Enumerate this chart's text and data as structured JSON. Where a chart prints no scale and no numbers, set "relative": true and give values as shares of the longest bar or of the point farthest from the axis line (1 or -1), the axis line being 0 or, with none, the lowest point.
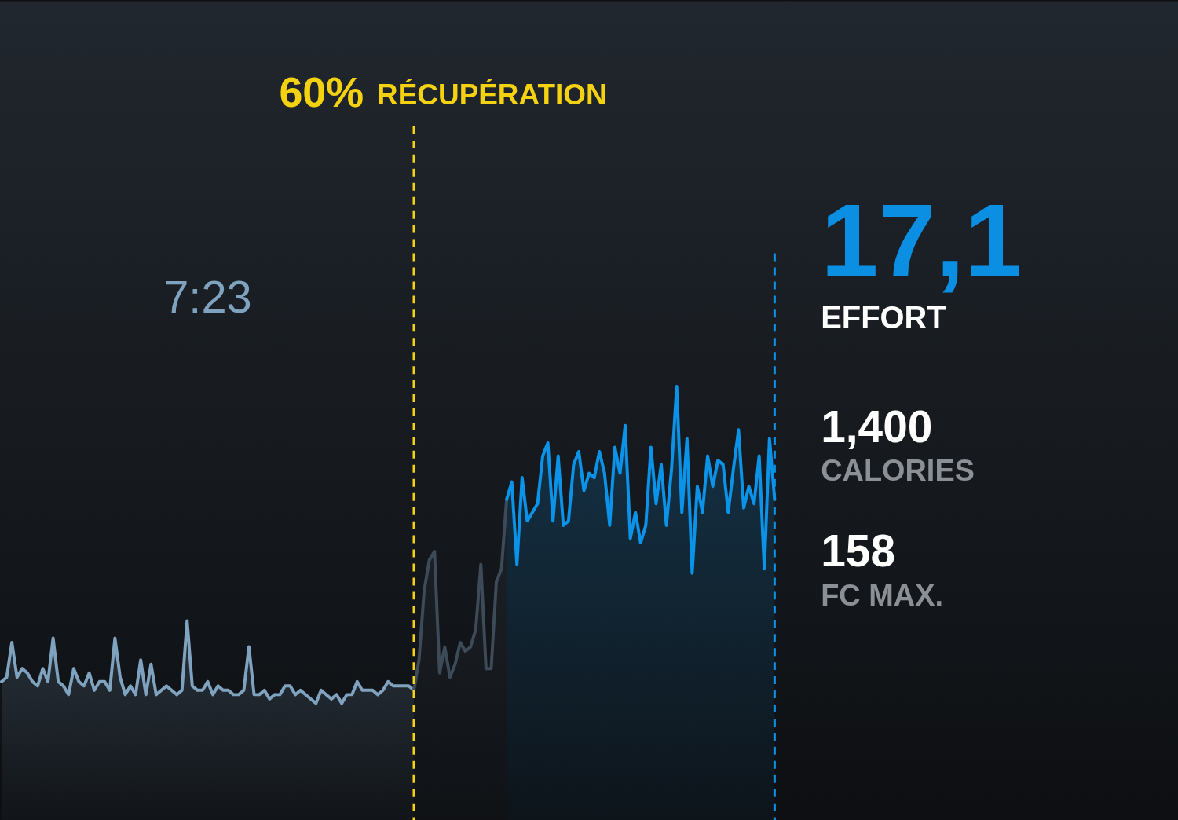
{
  "chart_data": [
    {
      "type": "area",
      "relative": true,
      "categories": [
        null,
        null,
        null,
        null,
        null,
        null,
        null,
        null,
        null,
        null,
        null,
        null,
        null,
        null,
        null,
        null,
        null,
        null,
        null,
        null,
        null,
        null,
        null,
        null,
        null,
        null,
        null,
        null,
        null,
        null,
        null,
        null,
        null,
        null,
        null,
        null,
        null,
        null,
        null,
        null,
        null,
        null,
        null,
        null,
        null,
        null,
        null,
        null,
        null,
        null,
        null,
        null,
        null,
        null,
        null,
        null,
        null,
        null,
        null,
        null,
        null,
        null,
        null,
        null,
        null,
        null,
        null,
        null,
        null,
        null,
        null,
        null,
        null,
        null,
        null,
        null,
        null,
        null,
        null,
        null,
        null,
        null,
        null,
        null,
        null,
        null,
        null,
        null,
        null,
        null,
        null,
        null,
        null,
        null,
        null,
        null,
        null,
        null,
        null,
        null,
        null,
        null,
        null,
        null,
        null,
        null,
        null,
        null,
        null,
        null,
        null,
        null,
        null,
        null,
        null,
        null,
        null,
        null,
        null,
        null,
        null,
        null,
        null,
        null,
        null,
        null,
        null,
        null,
        null,
        null,
        null,
        null,
        null,
        null,
        null,
        null,
        null,
        null,
        null,
        null,
        null,
        null,
        null,
        null,
        null,
        null,
        null,
        null,
        null,
        null,
        null
      ],
      "series": [
        {
          "color": "#7fa2bf",
          "values": [
            0.32,
            0.33,
            0.41,
            0.33,
            0.35,
            0.34,
            0.32,
            0.31,
            0.35,
            0.32,
            0.42,
            0.32,
            0.31,
            0.29,
            0.35,
            0.32,
            0.31,
            0.34,
            0.3,
            0.32,
            0.32,
            0.3,
            0.42,
            0.33,
            0.29,
            0.31,
            0.29,
            0.37,
            0.29,
            0.36,
            0.29,
            0.3,
            0.31,
            0.3,
            0.29,
            0.3,
            0.46,
            0.31,
            0.3,
            0.3,
            0.32,
            0.29,
            0.31,
            0.3,
            0.3,
            0.29,
            0.29,
            0.3,
            0.4,
            0.29,
            0.29,
            0.3,
            0.28,
            0.29,
            0.29,
            0.31,
            0.31,
            0.29,
            0.3,
            0.29,
            0.28,
            0.27,
            0.3,
            0.29,
            0.28,
            0.29,
            0.27,
            0.29,
            0.29,
            0.32,
            0.3,
            0.3,
            0.3,
            0.29,
            0.3,
            0.32,
            0.31,
            0.31,
            0.31,
            0.31,
            0.3,
            null,
            null,
            null,
            null,
            null,
            null,
            null,
            null,
            null,
            null,
            null,
            null,
            null,
            null,
            null,
            null,
            null,
            null,
            null,
            null,
            null,
            null,
            null,
            null,
            null,
            null,
            null,
            null,
            null,
            null,
            null,
            null,
            null,
            null,
            null,
            null,
            null,
            null,
            null,
            null,
            null,
            null,
            null,
            null,
            null,
            null,
            null,
            null,
            null,
            null,
            null,
            null,
            null,
            null,
            null,
            null,
            null,
            null,
            null,
            null,
            null,
            null,
            null,
            null,
            null,
            null,
            null,
            null,
            null,
            null
          ]
        },
        {
          "color": "#3d4b59",
          "values": [
            null,
            null,
            null,
            null,
            null,
            null,
            null,
            null,
            null,
            null,
            null,
            null,
            null,
            null,
            null,
            null,
            null,
            null,
            null,
            null,
            null,
            null,
            null,
            null,
            null,
            null,
            null,
            null,
            null,
            null,
            null,
            null,
            null,
            null,
            null,
            null,
            null,
            null,
            null,
            null,
            null,
            null,
            null,
            null,
            null,
            null,
            null,
            null,
            null,
            null,
            null,
            null,
            null,
            null,
            null,
            null,
            null,
            null,
            null,
            null,
            null,
            null,
            null,
            null,
            null,
            null,
            null,
            null,
            null,
            null,
            null,
            null,
            null,
            null,
            null,
            null,
            null,
            null,
            null,
            null,
            0.3,
            0.37,
            0.53,
            0.6,
            0.62,
            0.34,
            0.4,
            0.33,
            0.36,
            0.41,
            0.39,
            0.4,
            0.44,
            0.59,
            0.35,
            0.35,
            0.55,
            0.58,
            0.74,
            null,
            null,
            null,
            null,
            null,
            null,
            null,
            null,
            null,
            null,
            null,
            null,
            null,
            null,
            null,
            null,
            null,
            null,
            null,
            null,
            null,
            null,
            null,
            null,
            null,
            null,
            null,
            null,
            null,
            null,
            null,
            null,
            null,
            null,
            null,
            null,
            null,
            null,
            null,
            null,
            null,
            null,
            null,
            null,
            null,
            null,
            null,
            null,
            null,
            null,
            null,
            null
          ]
        },
        {
          "color": "#0a93e8",
          "values": [
            null,
            null,
            null,
            null,
            null,
            null,
            null,
            null,
            null,
            null,
            null,
            null,
            null,
            null,
            null,
            null,
            null,
            null,
            null,
            null,
            null,
            null,
            null,
            null,
            null,
            null,
            null,
            null,
            null,
            null,
            null,
            null,
            null,
            null,
            null,
            null,
            null,
            null,
            null,
            null,
            null,
            null,
            null,
            null,
            null,
            null,
            null,
            null,
            null,
            null,
            null,
            null,
            null,
            null,
            null,
            null,
            null,
            null,
            null,
            null,
            null,
            null,
            null,
            null,
            null,
            null,
            null,
            null,
            null,
            null,
            null,
            null,
            null,
            null,
            null,
            null,
            null,
            null,
            null,
            null,
            null,
            null,
            null,
            null,
            null,
            null,
            null,
            null,
            null,
            null,
            null,
            null,
            null,
            null,
            null,
            null,
            null,
            null,
            0.74,
            0.78,
            0.59,
            0.79,
            0.69,
            0.71,
            0.73,
            0.84,
            0.87,
            0.69,
            0.84,
            0.68,
            0.69,
            0.82,
            0.85,
            0.76,
            0.8,
            0.79,
            0.85,
            0.8,
            0.68,
            0.86,
            0.8,
            0.91,
            0.65,
            0.71,
            0.64,
            0.68,
            0.86,
            0.73,
            0.82,
            0.68,
            0.81,
            1,
            0.71,
            0.88,
            0.57,
            0.77,
            0.71,
            0.84,
            0.77,
            0.83,
            0.82,
            0.71,
            0.81,
            0.9,
            0.72,
            0.77,
            0.73,
            0.84,
            0.58,
            0.88,
            0.74
          ]
        }
      ],
      "annotations": [
        "60% RÉCUPÉRATION",
        "7:23"
      ]
    },
    {
      "type": "other",
      "annotations": [
        "17,1",
        "EFFORT",
        "1,400",
        "CALORIES",
        "158",
        "FC MAX."
      ]
    }
  ]
}
